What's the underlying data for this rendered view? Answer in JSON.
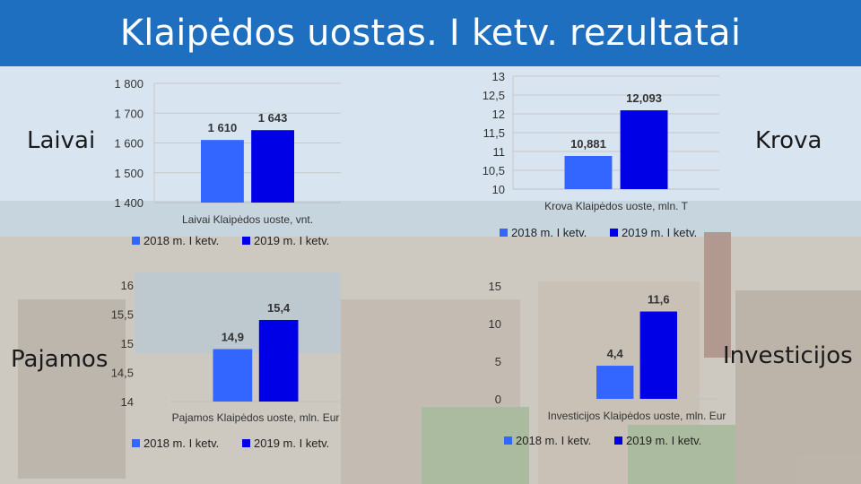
{
  "title": "Klaipėdos uostas. I ketv. rezultatai",
  "colors": {
    "title_bar": "#1f6fc0",
    "series_2018": "#3366ff",
    "series_2019": "#0000e6"
  },
  "side_labels": {
    "laivai": "Laivai",
    "krova": "Krova",
    "pajamos": "Pajamos",
    "investicijos": "Investicijos"
  },
  "chart_data": [
    {
      "type": "bar",
      "categories": [
        "Laivai Klaipėdos uoste, vnt."
      ],
      "series": [
        {
          "name": "2018 m. I ketv.",
          "values": [
            1610
          ],
          "label": "1 610"
        },
        {
          "name": "2019 m. I ketv.",
          "values": [
            1643
          ],
          "label": "1 643"
        }
      ],
      "ylim": [
        1400,
        1800
      ],
      "yticks": [
        1400,
        1500,
        1600,
        1700,
        1800
      ],
      "ytick_labels": [
        "1 400",
        "1 500",
        "1 600",
        "1 700",
        "1 800"
      ],
      "xlabel": "Laivai Klaipėdos uoste, vnt.",
      "grid": true,
      "legend": "bottom"
    },
    {
      "type": "bar",
      "categories": [
        "Krova Klaipėdos uoste, mln. T"
      ],
      "series": [
        {
          "name": "2018 m. I ketv.",
          "values": [
            10.881
          ],
          "label": "10,881"
        },
        {
          "name": "2019 m. I ketv.",
          "values": [
            12.093
          ],
          "label": "12,093"
        }
      ],
      "ylim": [
        10,
        13
      ],
      "yticks": [
        10,
        10.5,
        11,
        11.5,
        12,
        12.5,
        13
      ],
      "ytick_labels": [
        "10",
        "10,5",
        "11",
        "11,5",
        "12",
        "12,5",
        "13"
      ],
      "xlabel": "Krova Klaipėdos uoste, mln. T",
      "grid": true,
      "legend": "bottom"
    },
    {
      "type": "bar",
      "categories": [
        "Pajamos Klaipėdos uoste, mln. Eur"
      ],
      "series": [
        {
          "name": "2018 m. I ketv.",
          "values": [
            14.9
          ],
          "label": "14,9"
        },
        {
          "name": "2019 m. I ketv.",
          "values": [
            15.4
          ],
          "label": "15,4"
        }
      ],
      "ylim": [
        14,
        16
      ],
      "yticks": [
        14,
        14.5,
        15,
        15.5,
        16
      ],
      "ytick_labels": [
        "14",
        "14,5",
        "15",
        "15,5",
        "16"
      ],
      "xlabel": "Pajamos Klaipėdos uoste, mln. Eur",
      "grid": false,
      "legend": "bottom"
    },
    {
      "type": "bar",
      "categories": [
        "Investicijos Klaipėdos uoste, mln. Eur"
      ],
      "series": [
        {
          "name": "2018 m. I ketv.",
          "values": [
            4.4
          ],
          "label": "4,4"
        },
        {
          "name": "2019 m. I ketv.",
          "values": [
            11.6
          ],
          "label": "11,6"
        }
      ],
      "ylim": [
        0,
        15
      ],
      "yticks": [
        0,
        5,
        10,
        15
      ],
      "ytick_labels": [
        "0",
        "5",
        "10",
        "15"
      ],
      "xlabel": "Investicijos Klaipėdos uoste, mln. Eur",
      "grid": false,
      "legend": "bottom"
    }
  ]
}
